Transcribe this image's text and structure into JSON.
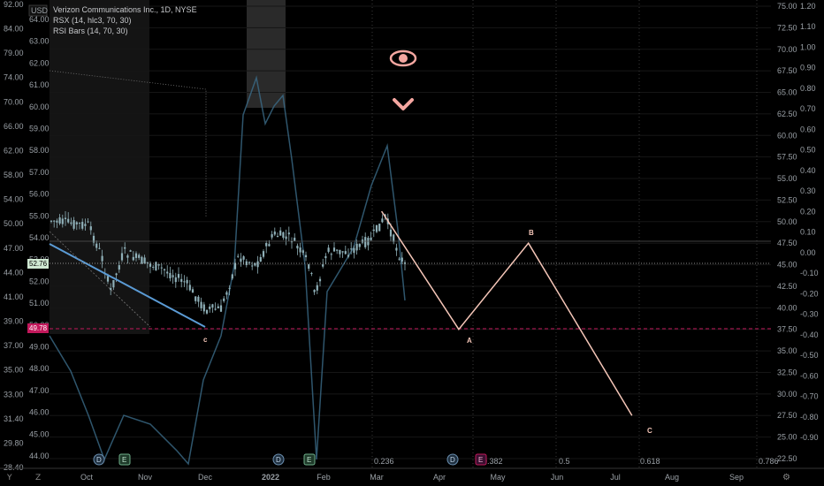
{
  "chart_data": {
    "type": "candlestick",
    "legend": {
      "symbol": "Verizon Communications Inc., 1D, NYSE",
      "indicator1": "RSX (14, hlc3, 70, 30)",
      "indicator2": "RSI Bars (14, 70, 30)"
    },
    "currency": "USD",
    "x_labels": [
      "Oct",
      "Nov",
      "Dec",
      "2022",
      "Feb",
      "Mar",
      "Apr",
      "May",
      "Jun",
      "Jul",
      "Aug",
      "Sep"
    ],
    "y_left_outer": [
      "92.00",
      "84.00",
      "79.00",
      "74.00",
      "70.00",
      "66.00",
      "62.00",
      "58.00",
      "54.00",
      "50.00",
      "47.00",
      "44.00",
      "41.00",
      "39.00",
      "37.00",
      "35.00",
      "33.00",
      "31.40",
      "29.80",
      "28.40"
    ],
    "y_left_inner": [
      "64.00",
      "63.00",
      "62.00",
      "61.00",
      "60.00",
      "59.00",
      "58.00",
      "57.00",
      "56.00",
      "55.00",
      "54.00",
      "53.00",
      "52.00",
      "51.00",
      "50.00",
      "49.00",
      "48.00",
      "47.00",
      "46.00",
      "45.00",
      "44.00"
    ],
    "y_right_price": [
      "75.00",
      "72.50",
      "70.00",
      "67.50",
      "65.00",
      "62.50",
      "60.00",
      "57.50",
      "55.00",
      "52.50",
      "50.00",
      "47.50",
      "45.00",
      "42.50",
      "40.00",
      "37.50",
      "35.00",
      "32.50",
      "30.00",
      "27.50",
      "25.00",
      "22.50"
    ],
    "y_right_osc": [
      "1.20",
      "1.10",
      "1.00",
      "0.90",
      "0.80",
      "0.70",
      "0.60",
      "0.50",
      "0.40",
      "0.30",
      "0.20",
      "0.10",
      "0.00",
      "-0.10",
      "-0.20",
      "-0.30",
      "-0.40",
      "-0.50",
      "-0.60",
      "-0.70",
      "-0.80",
      "-0.90"
    ],
    "current_badge": "52.76",
    "level_badge": "49.78",
    "fib_levels": [
      "0.236",
      "0.382",
      "0.5",
      "0.618",
      "0.786"
    ],
    "wave_labels": [
      "c",
      "A",
      "B",
      "C"
    ],
    "projection": [
      {
        "date": "2022-03-01",
        "price": 51.2
      },
      {
        "date": "2022-04-11",
        "price": 37.5
      },
      {
        "date": "2022-05-18",
        "price": 47.5
      },
      {
        "date": "2022-07-12",
        "price": 27.5
      }
    ],
    "event_markers": [
      "D",
      "E",
      "D",
      "E",
      "D",
      "E"
    ],
    "colors": {
      "background": "#000000",
      "candle": "#8fb0b8",
      "trendline": "#5b9bd5",
      "projection": "#f5c6b8",
      "level_dash": "#c2185b",
      "current_badge": "#cfe8d2",
      "level_badge": "#c2185b",
      "eye_icon": "#f4a6a0",
      "fib_line": "#444444"
    },
    "icons": [
      "eye-icon",
      "chevron-down-icon",
      "zoom-icon",
      "gear-icon"
    ]
  }
}
